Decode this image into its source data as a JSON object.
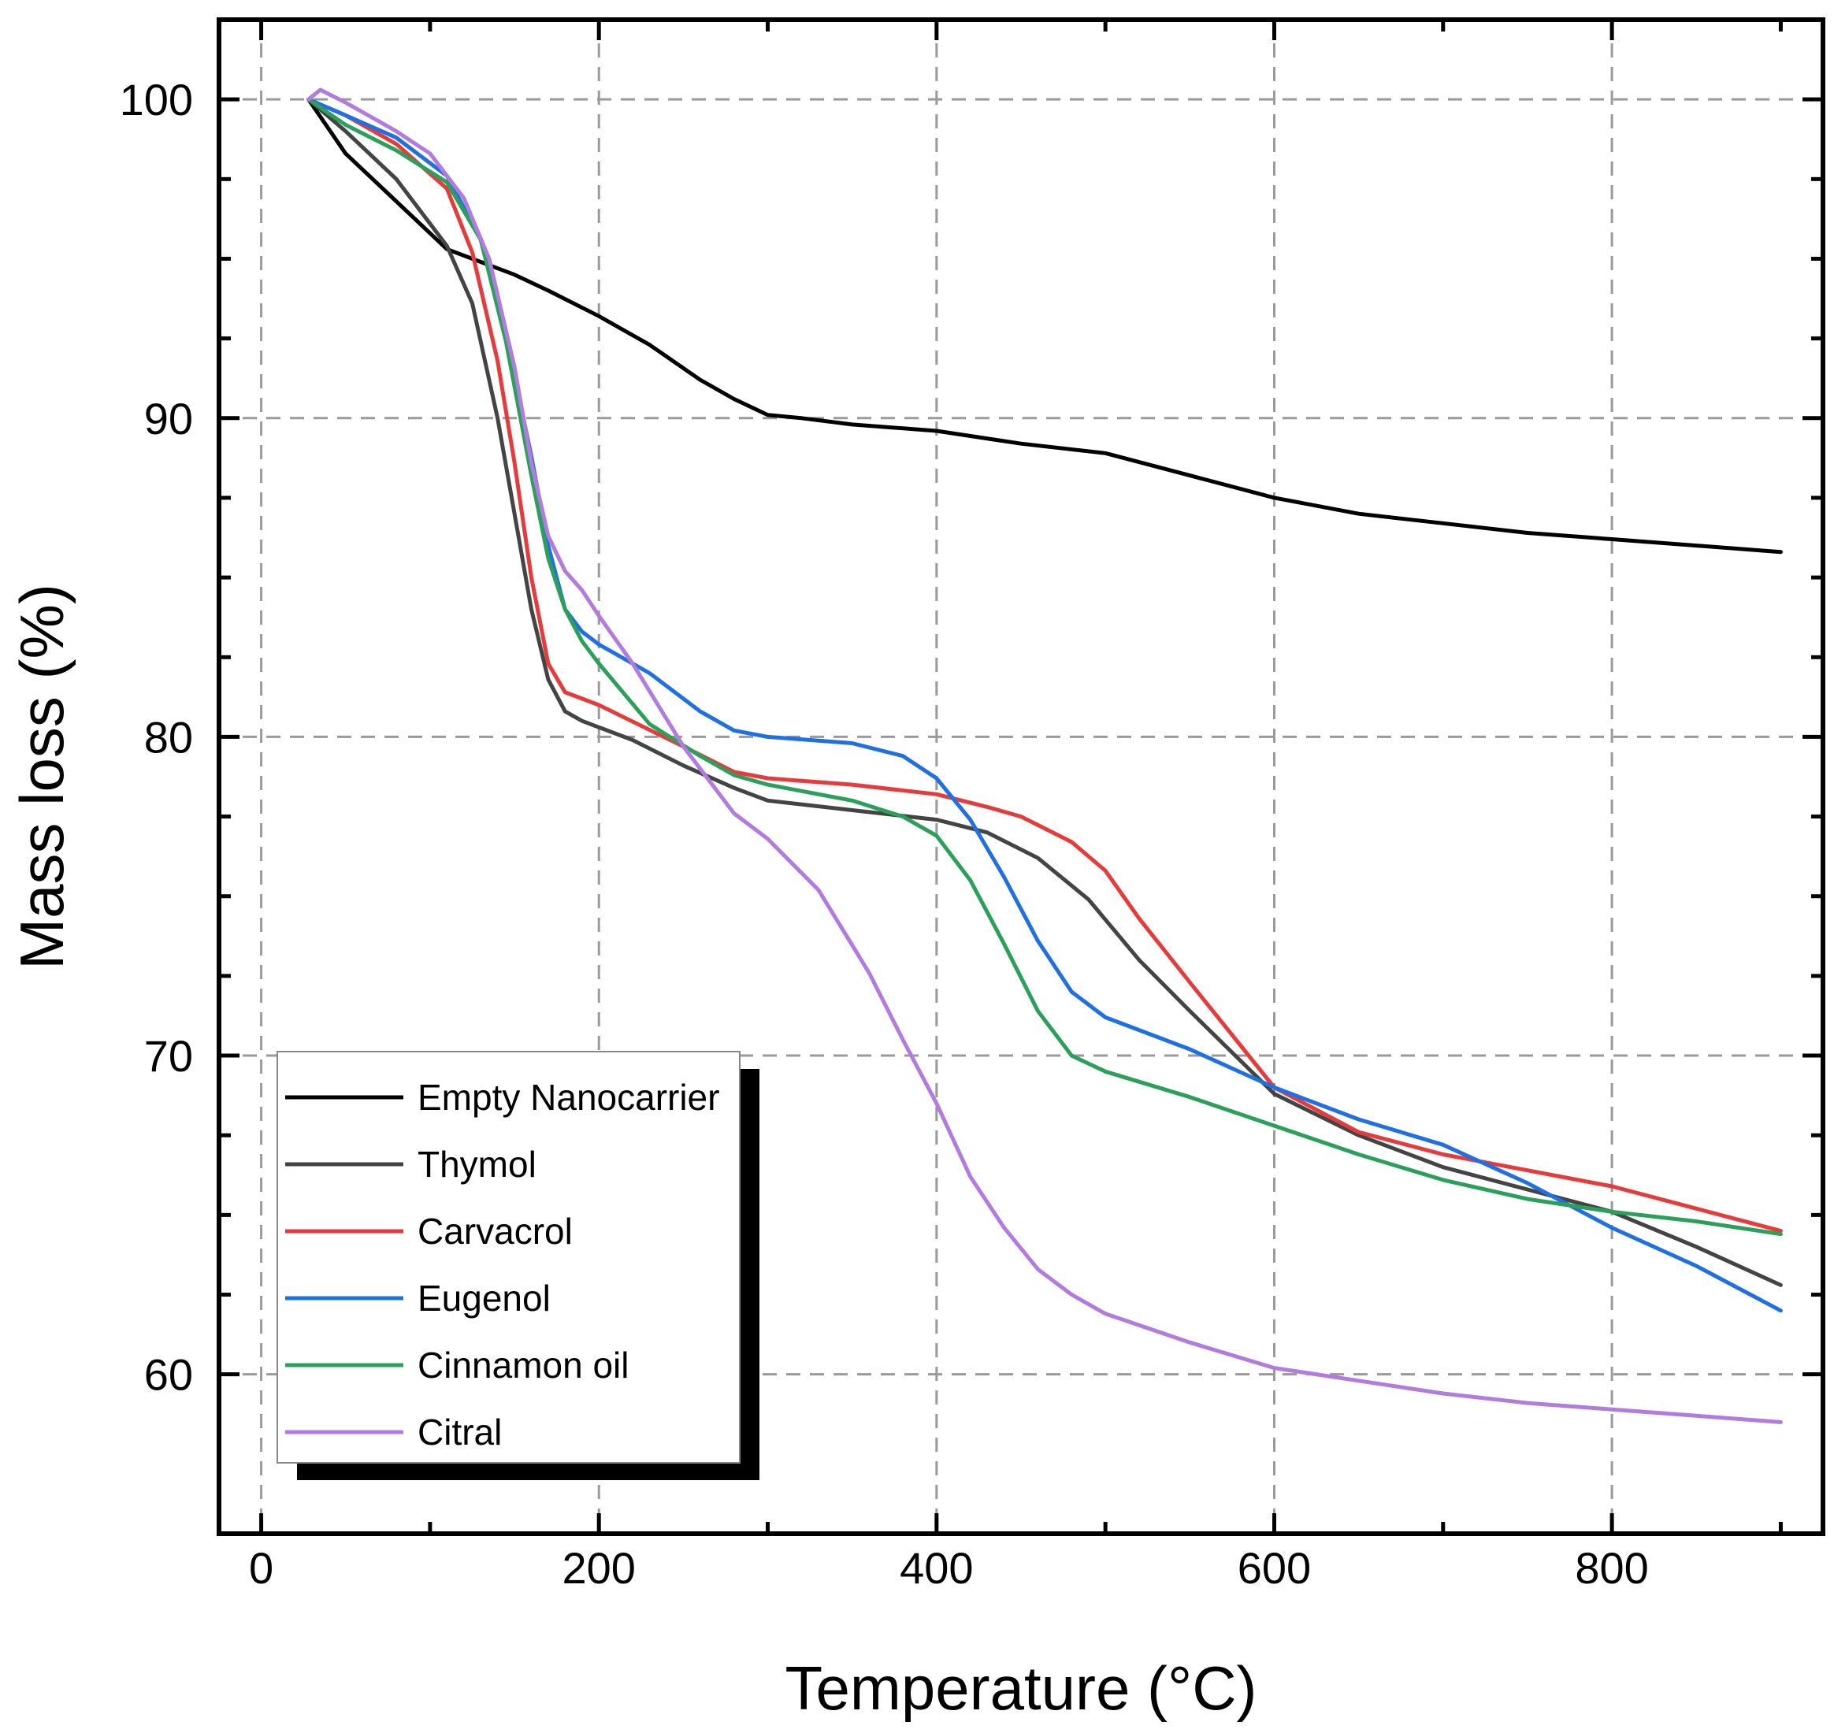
{
  "chart_data": {
    "type": "line",
    "title": "",
    "xlabel": "Temperature (°C)",
    "ylabel": "Mass loss (%)",
    "xlim": [
      -25,
      925
    ],
    "ylim": [
      55,
      102.5
    ],
    "xticks": [
      0,
      200,
      400,
      600,
      800
    ],
    "yticks": [
      60,
      70,
      80,
      90,
      100
    ],
    "grid": true,
    "legend_position": "bottom-left",
    "series": [
      {
        "name": "Empty Nanocarrier",
        "color": "#000000",
        "x": [
          28,
          50,
          80,
          110,
          130,
          150,
          170,
          200,
          230,
          260,
          280,
          300,
          320,
          350,
          400,
          450,
          500,
          550,
          600,
          650,
          700,
          750,
          800,
          850,
          900
        ],
        "y": [
          100,
          98.3,
          96.8,
          95.3,
          94.9,
          94.5,
          94.0,
          93.2,
          92.3,
          91.2,
          90.6,
          90.1,
          90.0,
          89.8,
          89.6,
          89.2,
          88.9,
          88.2,
          87.5,
          87.0,
          86.7,
          86.4,
          86.2,
          86.0,
          85.8
        ]
      },
      {
        "name": "Thymol",
        "color": "#444444",
        "x": [
          28,
          50,
          80,
          110,
          125,
          140,
          150,
          160,
          170,
          180,
          190,
          200,
          220,
          250,
          280,
          300,
          350,
          400,
          430,
          460,
          490,
          520,
          550,
          600,
          650,
          700,
          750,
          800,
          850,
          900
        ],
        "y": [
          100,
          99.0,
          97.5,
          95.4,
          93.6,
          90.0,
          87.0,
          84.0,
          81.8,
          80.8,
          80.5,
          80.3,
          79.9,
          79.1,
          78.4,
          78.0,
          77.7,
          77.4,
          77.0,
          76.2,
          74.9,
          73.0,
          71.4,
          68.8,
          67.5,
          66.5,
          65.8,
          65.1,
          64.0,
          62.8
        ]
      },
      {
        "name": "Carvacrol",
        "color": "#e83a3a",
        "x": [
          28,
          50,
          80,
          110,
          125,
          140,
          150,
          160,
          170,
          180,
          190,
          200,
          250,
          280,
          300,
          350,
          400,
          430,
          450,
          480,
          500,
          520,
          550,
          600,
          650,
          700,
          750,
          800,
          850,
          900
        ],
        "y": [
          100,
          99.5,
          98.6,
          97.2,
          95.2,
          91.8,
          88.6,
          85.0,
          82.3,
          81.4,
          81.2,
          81.0,
          79.7,
          78.9,
          78.7,
          78.5,
          78.2,
          77.8,
          77.5,
          76.7,
          75.8,
          74.3,
          72.3,
          69.0,
          67.6,
          66.9,
          66.4,
          65.9,
          65.2,
          64.5
        ]
      },
      {
        "name": "Eugenol",
        "color": "#1f6fe5",
        "x": [
          28,
          50,
          80,
          110,
          130,
          145,
          160,
          170,
          180,
          190,
          200,
          230,
          260,
          280,
          300,
          350,
          380,
          400,
          420,
          440,
          460,
          480,
          500,
          550,
          600,
          650,
          700,
          750,
          800,
          850,
          900
        ],
        "y": [
          100,
          99.5,
          98.8,
          97.6,
          95.6,
          92.6,
          88.8,
          86.0,
          84.0,
          83.3,
          82.9,
          82.0,
          80.8,
          80.2,
          80.0,
          79.8,
          79.4,
          78.7,
          77.4,
          75.6,
          73.6,
          72.0,
          71.2,
          70.2,
          69.0,
          68.0,
          67.2,
          66.0,
          64.6,
          63.4,
          62.0
        ]
      },
      {
        "name": "Cinnamon oil",
        "color": "#2aa05a",
        "x": [
          28,
          50,
          80,
          110,
          130,
          145,
          160,
          170,
          180,
          190,
          200,
          230,
          260,
          280,
          300,
          350,
          380,
          400,
          420,
          440,
          460,
          480,
          500,
          550,
          600,
          650,
          700,
          750,
          800,
          850,
          900
        ],
        "y": [
          100,
          99.2,
          98.4,
          97.4,
          95.6,
          92.4,
          88.2,
          85.6,
          84.0,
          83.0,
          82.3,
          80.4,
          79.4,
          78.8,
          78.5,
          78.0,
          77.5,
          76.9,
          75.5,
          73.5,
          71.4,
          70.0,
          69.5,
          68.7,
          67.8,
          66.9,
          66.1,
          65.5,
          65.1,
          64.8,
          64.4
        ]
      },
      {
        "name": "Citral",
        "color": "#b27be0",
        "x": [
          28,
          35,
          50,
          80,
          100,
          120,
          135,
          150,
          160,
          170,
          180,
          190,
          200,
          220,
          250,
          280,
          300,
          330,
          360,
          380,
          400,
          420,
          440,
          460,
          480,
          500,
          550,
          600,
          650,
          700,
          750,
          800,
          850,
          900
        ],
        "y": [
          100,
          100.3,
          99.9,
          99.0,
          98.3,
          96.9,
          95.0,
          91.6,
          88.6,
          86.3,
          85.2,
          84.6,
          83.8,
          82.3,
          79.7,
          77.6,
          76.8,
          75.2,
          72.6,
          70.5,
          68.5,
          66.2,
          64.6,
          63.3,
          62.5,
          61.9,
          61.0,
          60.2,
          59.8,
          59.4,
          59.1,
          58.9,
          58.7,
          58.5
        ]
      }
    ]
  }
}
